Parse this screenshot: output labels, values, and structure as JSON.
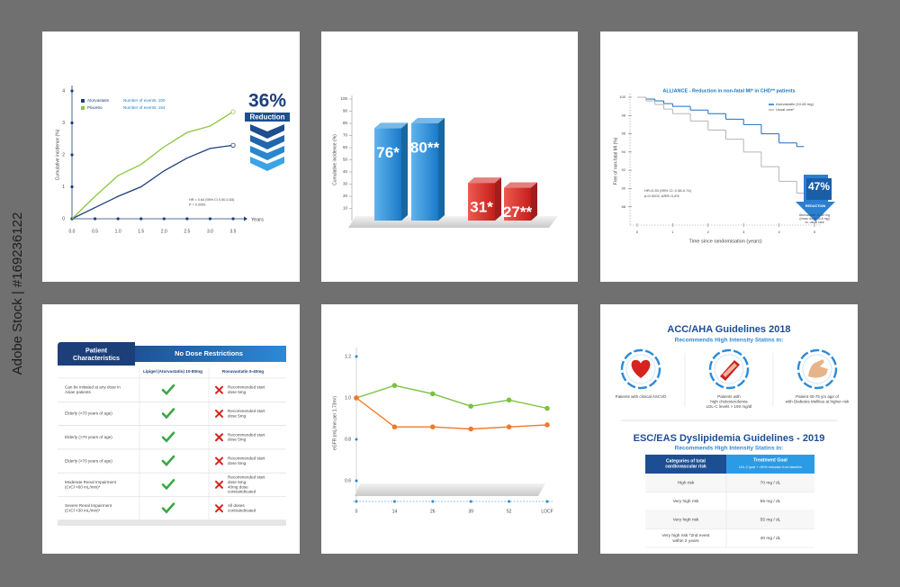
{
  "watermark": "Adobe Stock | #169236122",
  "chart_data": [
    {
      "type": "line",
      "x": [
        0,
        0.5,
        1,
        1.5,
        2,
        2.5,
        3,
        3.5
      ],
      "xlim": [
        0,
        3.5
      ],
      "ylim": [
        0,
        4
      ],
      "xticks": [
        {
          "value": 0,
          "label": "0.0"
        },
        0.5,
        {
          "value": 1,
          "label": "1.0"
        },
        1.5,
        {
          "value": 2,
          "label": "2.0"
        },
        2.5,
        {
          "value": 3,
          "label": "3.0"
        },
        3.5
      ],
      "yticks": [
        0,
        1,
        2,
        3,
        4
      ],
      "xlabel": "Years",
      "ylabel": "Cumulative incidence (%)",
      "series": [
        {
          "name": "Atorvastatin",
          "color": "#1d3f7c",
          "values": [
            0,
            0.35,
            0.7,
            1.0,
            1.5,
            1.9,
            2.2,
            2.3
          ],
          "note": "Number of events: 100"
        },
        {
          "name": "Placebo",
          "color": "#8cc63e",
          "values": [
            0,
            0.7,
            1.35,
            1.7,
            2.25,
            2.7,
            2.9,
            3.35
          ],
          "note": "Number of events: 154"
        }
      ],
      "annotations": [
        "HR = 0.64 (95% CI 0.50-0.83)",
        "P = 0.0005"
      ],
      "callout": [
        "36%",
        "Reduction"
      ]
    },
    {
      "type": "bar3d",
      "categories": [
        null,
        null,
        null,
        null
      ],
      "values": [
        76,
        80,
        31,
        27
      ],
      "value_labels": [
        "76*",
        "80**",
        "31*",
        "27**"
      ],
      "colors": [
        "#1f8ad6",
        "#1f8ad6",
        "#d42a26",
        "#d42a26"
      ],
      "ylabel": "Cumulative incidence (%)",
      "ylim": [
        0,
        100
      ],
      "yticks": [
        10,
        20,
        30,
        40,
        50,
        60,
        70,
        80,
        90,
        100
      ]
    },
    {
      "type": "step",
      "title": "ALLIANCE - Reduction in non-fatal MI* in CHD** patients",
      "x": [
        0,
        0.25,
        0.5,
        0.75,
        1,
        1.5,
        2,
        2.5,
        3,
        3.5,
        4,
        4.5
      ],
      "xlim": [
        0,
        5
      ],
      "xticks": [
        0,
        1,
        2,
        3,
        4,
        5
      ],
      "ylim": [
        86,
        100
      ],
      "yticks": [
        88,
        90,
        92,
        94,
        96,
        98,
        100
      ],
      "xlabel": "Time since randomisation (years)",
      "ylabel": "Free of non-fatal MI (%)",
      "series": [
        {
          "name": "Atorvastatin (10-80 mg)",
          "color": "#1b6fc0",
          "values": [
            100,
            99.8,
            99.6,
            99.3,
            99,
            98.6,
            98.2,
            97.6,
            97,
            96,
            95,
            94.6
          ]
        },
        {
          "name": "Usual care*",
          "color": "#b5b5b5",
          "values": [
            100,
            99.6,
            99.2,
            98.7,
            98.2,
            97.4,
            96.4,
            95.4,
            94,
            92.4,
            90.8,
            89.5
          ]
        }
      ],
      "annotations": [
        "HR=0.53 (95% CI: 0.38-0.74)",
        "p=0.0002, ARR=3.4%"
      ],
      "callout": [
        "47%",
        "REDUCTION"
      ],
      "callout_note": [
        "Atorvastatin 10-80 mg",
        "(mean dose 40.5 mg)",
        "vs. usual care"
      ]
    },
    {
      "type": "line",
      "categories": [
        "0",
        "14",
        "26",
        "39",
        "52",
        "LOCF"
      ],
      "ylim": [
        0.5,
        1.25
      ],
      "yticks": [
        0.6,
        0.8,
        {
          "value": 1,
          "label": "1.0"
        },
        1.2
      ],
      "ylabel": "eGFR (mL/min per 1.73m²)",
      "series": [
        {
          "color": "#7cc142",
          "values": [
            1.0,
            1.06,
            1.02,
            0.96,
            0.99,
            0.95
          ]
        },
        {
          "color": "#f07a2a",
          "values": [
            1.0,
            0.86,
            0.86,
            0.85,
            0.86,
            0.87
          ]
        }
      ]
    }
  ],
  "dose_table": {
    "header": [
      [
        "Patient",
        "Characteristics"
      ],
      "No Dose Restrictions"
    ],
    "columns": [
      "Lipigel (Atorvastatin) 10-80mg",
      "Rosuvastatin 5-40mg"
    ],
    "rows": [
      {
        "characteristic": [
          "Can be initiated at any dose in",
          "Asian patients"
        ],
        "rosuvastatin": [
          "Recommended start",
          "dose 5mg"
        ]
      },
      {
        "characteristic": [
          "Elderly (>70 years of age)"
        ],
        "rosuvastatin": [
          "Recommended start",
          "dose 5mg"
        ]
      },
      {
        "characteristic": [
          "Elderly (>70 years of age)"
        ],
        "rosuvastatin": [
          "Recommended start",
          "dose 5mg"
        ]
      },
      {
        "characteristic": [
          "Elderly (>70 years of age)"
        ],
        "rosuvastatin": [
          "Recommended start",
          "dose 5mg"
        ]
      },
      {
        "characteristic": [
          "Moderate Renal Impairment",
          "(CrCl <60 mL/min)*"
        ],
        "rosuvastatin": [
          "Recommended start",
          "dose 5mg",
          "40mg dose",
          "contraindicated"
        ]
      },
      {
        "characteristic": [
          "Severe Renal Impairment",
          "(CrCl <30 mL/min)*"
        ],
        "rosuvastatin": [
          "All doses",
          "contraindicated"
        ]
      }
    ]
  },
  "acc_aha": {
    "title": "ACC/AHA Guidelines 2018",
    "subtitle": "Recommends High Intensity Statins in:",
    "groups": [
      [
        "Patients with clinical ASCVD"
      ],
      [
        "Patients with",
        "high cholesterolemia",
        "LDL-C levels > 190 mg/dl"
      ],
      [
        "Patient 40-75 yrs age of",
        "with Diabetes Mellitus at higher risk"
      ]
    ]
  },
  "esc_eas": {
    "title": "ESC/EAS Dyslipidemia Guidelines - 2019",
    "subtitle": "Recommends High Intensity Statins in:",
    "columns": [
      [
        "Categories of total",
        "cardiovascular risk"
      ],
      [
        "Treatment Goal",
        "LDL-C goal + >50% reduction from baseline"
      ]
    ],
    "rows": [
      [
        [
          "High risk"
        ],
        [
          "70 mg / dL"
        ]
      ],
      [
        [
          "Very high risk"
        ],
        [
          "55 mg / dL"
        ]
      ],
      [
        [
          "Very high risk"
        ],
        [
          "55 mg / dL"
        ]
      ],
      [
        [
          "Very high risk *2nd event",
          "within 2 years"
        ],
        [
          "40 mg / dL"
        ]
      ]
    ]
  }
}
